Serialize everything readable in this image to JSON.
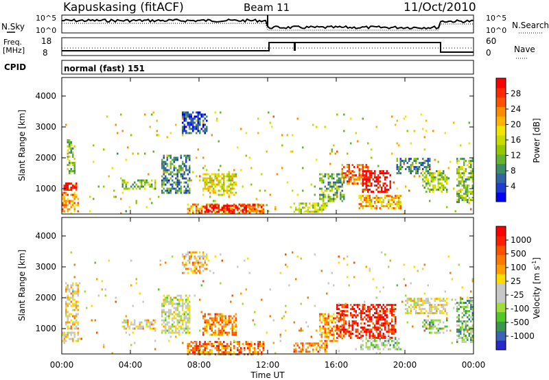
{
  "header": {
    "station": "Kapuskasing (fitACF)",
    "beam": "Beam 11",
    "date": "11/Oct/2010"
  },
  "top_panels": {
    "nsky_label": "N.Sky",
    "nsearch_label": "N.Search",
    "noise_ticks_left": [
      "10^5",
      "10^0"
    ],
    "noise_ticks_right": [
      "10^5",
      "10^0"
    ],
    "freq_label_line1": "Freq.",
    "freq_label_line2": "[MHz]",
    "freq_ticks": [
      "18",
      "8"
    ],
    "nave_label": "Nave",
    "nave_ticks": [
      "60",
      "0"
    ],
    "cpid_label": "CPID",
    "cpid_value": "normal (fast) 151"
  },
  "power_colorbar": {
    "title": "Power [dB]",
    "tick_labels": [
      "28",
      "24",
      "20",
      "16",
      "12",
      "8",
      "4"
    ],
    "colors": [
      "#0000ff",
      "#1e3cd2",
      "#3264a0",
      "#3c8c64",
      "#64b432",
      "#96c800",
      "#c8dc00",
      "#f0e600",
      "#ffb400",
      "#ff8c00",
      "#ff5000",
      "#ff2800",
      "#ff0000"
    ]
  },
  "velocity_colorbar": {
    "title": "Velocity [m s",
    "title_sup": "-1",
    "title_end": "]",
    "tick_labels": [
      "1000",
      "500",
      "100",
      "25",
      "-25",
      "-100",
      "-500",
      "-1000"
    ],
    "colors": [
      "#2828c8",
      "#3c64b4",
      "#3c9650",
      "#50c828",
      "#a0dc3c",
      "#c8c8c8",
      "#c8c8c8",
      "#ffdc00",
      "#ffa000",
      "#ff7800",
      "#ff5000",
      "#ff1e00",
      "#ff0000"
    ]
  },
  "chart_data": [
    {
      "type": "heatmap",
      "name": "power",
      "ylabel": "Slant Range [km]",
      "yticks": [
        "4000",
        "3000",
        "2000",
        "1000"
      ],
      "ytick_values": [
        4000,
        3000,
        2000,
        1000
      ],
      "ylim": [
        180,
        4600
      ],
      "xlim": [
        0,
        24
      ],
      "xticks": [
        "00:00",
        "04:00",
        "08:00",
        "12:00",
        "16:00",
        "20:00",
        "00:00"
      ],
      "regions": [
        {
          "t0": 0.0,
          "t1": 1.0,
          "r0": 300,
          "r1": 900,
          "level": 0.75
        },
        {
          "t0": 0.1,
          "t1": 0.9,
          "r0": 1000,
          "r1": 1200,
          "level": 1.0
        },
        {
          "t0": 0.3,
          "t1": 0.8,
          "r0": 1500,
          "r1": 2600,
          "level": 0.4
        },
        {
          "t0": 3.5,
          "t1": 5.5,
          "r0": 1000,
          "r1": 1300,
          "level": 0.4
        },
        {
          "t0": 5.8,
          "t1": 7.5,
          "r0": 900,
          "r1": 2100,
          "level": 0.25
        },
        {
          "t0": 7.0,
          "t1": 8.5,
          "r0": 2800,
          "r1": 3500,
          "level": 0.15
        },
        {
          "t0": 8.2,
          "t1": 10.2,
          "r0": 800,
          "r1": 1500,
          "level": 0.55
        },
        {
          "t0": 7.3,
          "t1": 11.8,
          "r0": 200,
          "r1": 520,
          "level": 0.7
        },
        {
          "t0": 8.3,
          "t1": 10.8,
          "r0": 220,
          "r1": 480,
          "level": 1.0
        },
        {
          "t0": 10.8,
          "t1": 11.8,
          "r0": 300,
          "r1": 500,
          "level": 0.85
        },
        {
          "t0": 13.5,
          "t1": 15.5,
          "r0": 250,
          "r1": 550,
          "level": 0.5
        },
        {
          "t0": 15.0,
          "t1": 16.5,
          "r0": 600,
          "r1": 1500,
          "level": 0.35
        },
        {
          "t0": 16.3,
          "t1": 18.0,
          "r0": 1200,
          "r1": 1800,
          "level": 0.8
        },
        {
          "t0": 17.5,
          "t1": 19.2,
          "r0": 900,
          "r1": 1600,
          "level": 1.0
        },
        {
          "t0": 17.3,
          "t1": 19.8,
          "r0": 350,
          "r1": 800,
          "level": 0.65
        },
        {
          "t0": 19.5,
          "t1": 21.5,
          "r0": 1500,
          "r1": 2000,
          "level": 0.25
        },
        {
          "t0": 21.0,
          "t1": 22.5,
          "r0": 900,
          "r1": 1600,
          "level": 0.45
        },
        {
          "t0": 23.0,
          "t1": 24.0,
          "r0": 600,
          "r1": 2000,
          "level": 0.4
        },
        {
          "t0": 0.0,
          "t1": 24.0,
          "r0": 200,
          "r1": 3500,
          "level": 0.1,
          "sparse": true
        }
      ]
    },
    {
      "type": "heatmap",
      "name": "velocity",
      "ylabel": "Slant Range [km]",
      "yticks": [
        "4000",
        "3000",
        "2000",
        "1000"
      ],
      "ytick_values": [
        4000,
        3000,
        2000,
        1000
      ],
      "ylim": [
        180,
        4600
      ],
      "xlim": [
        0,
        24
      ],
      "xticks": [
        "00:00",
        "04:00",
        "08:00",
        "12:00",
        "16:00",
        "20:00",
        "00:00"
      ],
      "xlabel": "Time UT",
      "regions": [
        {
          "t0": 0.0,
          "t1": 1.0,
          "r0": 600,
          "r1": 900,
          "level": 0.5
        },
        {
          "t0": 0.2,
          "t1": 1.0,
          "r0": 1000,
          "r1": 2500,
          "level": 0.55
        },
        {
          "t0": 3.5,
          "t1": 5.5,
          "r0": 1000,
          "r1": 1300,
          "level": 0.55
        },
        {
          "t0": 5.8,
          "t1": 7.5,
          "r0": 900,
          "r1": 2100,
          "level": 0.45
        },
        {
          "t0": 7.0,
          "t1": 8.5,
          "r0": 2800,
          "r1": 3500,
          "level": 0.6
        },
        {
          "t0": 8.2,
          "t1": 10.2,
          "r0": 800,
          "r1": 1500,
          "level": 0.7
        },
        {
          "t0": 7.3,
          "t1": 11.8,
          "r0": 200,
          "r1": 600,
          "level": 0.75
        },
        {
          "t0": 13.5,
          "t1": 15.5,
          "r0": 250,
          "r1": 550,
          "level": 0.7
        },
        {
          "t0": 15.0,
          "t1": 16.5,
          "r0": 600,
          "r1": 1500,
          "level": 0.7
        },
        {
          "t0": 16.0,
          "t1": 19.5,
          "r0": 700,
          "r1": 1800,
          "level": 0.9
        },
        {
          "t0": 17.3,
          "t1": 19.8,
          "r0": 350,
          "r1": 700,
          "level": 0.35
        },
        {
          "t0": 20.0,
          "t1": 22.5,
          "r0": 1500,
          "r1": 2000,
          "level": 0.5
        },
        {
          "t0": 21.0,
          "t1": 22.5,
          "r0": 900,
          "r1": 1300,
          "level": 0.3
        },
        {
          "t0": 23.0,
          "t1": 24.0,
          "r0": 600,
          "r1": 2000,
          "level": 0.3
        },
        {
          "t0": 0.0,
          "t1": 24.0,
          "r0": 200,
          "r1": 3500,
          "level": 0.6,
          "sparse": true
        }
      ]
    }
  ]
}
